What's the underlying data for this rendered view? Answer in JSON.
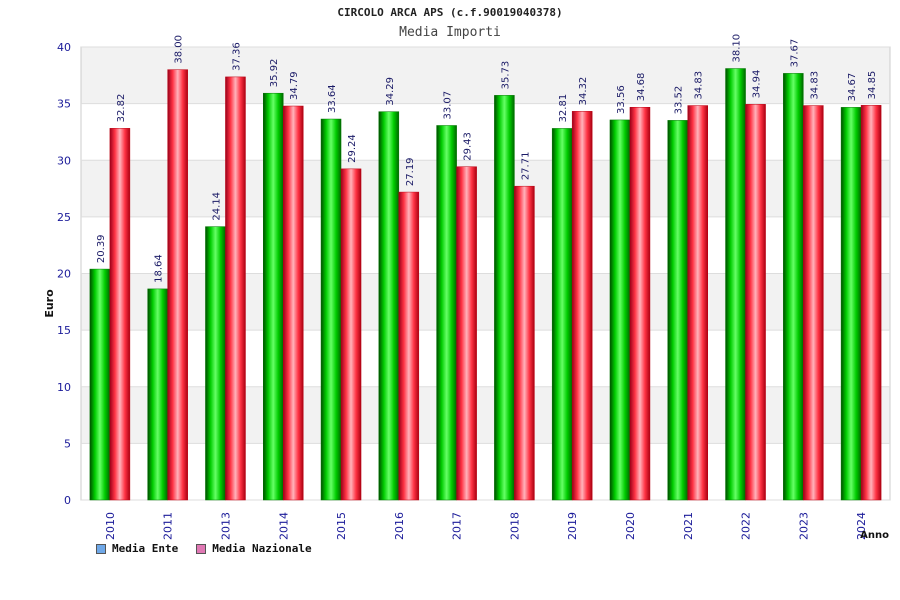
{
  "chart_data": {
    "type": "bar",
    "title": "CIRCOLO ARCA APS (c.f.90019040378)",
    "subtitle": "Media Importi",
    "ylabel": "Euro",
    "xlabel": "Anno",
    "ylim": [
      0,
      40
    ],
    "yticks": [
      0,
      5,
      10,
      15,
      20,
      25,
      30,
      35,
      40
    ],
    "grid": true,
    "legend_position": "bottom-left",
    "categories": [
      "2010",
      "2011",
      "2013",
      "2014",
      "2015",
      "2016",
      "2017",
      "2018",
      "2019",
      "2020",
      "2021",
      "2022",
      "2023",
      "2024"
    ],
    "series": [
      {
        "name": "Media Ente",
        "color": "#00aa00",
        "legend_color": "#6fa8e8",
        "values": [
          20.39,
          18.64,
          24.14,
          35.92,
          33.64,
          34.29,
          33.07,
          35.73,
          32.81,
          33.56,
          33.52,
          38.1,
          37.67,
          34.67
        ],
        "labels": [
          "20.39",
          "18.64",
          "24.14",
          "35.92",
          "33.64",
          "34.29",
          "33.07",
          "35.73",
          "32.81",
          "33.56",
          "33.52",
          "38.10",
          "37.67",
          "34.67"
        ]
      },
      {
        "name": "Media Nazionale",
        "color": "#ee1122",
        "legend_color": "#e078b4",
        "values": [
          32.82,
          38.0,
          37.36,
          34.79,
          29.24,
          27.19,
          29.43,
          27.71,
          34.32,
          34.68,
          34.83,
          34.94,
          34.83,
          34.85
        ],
        "labels": [
          "32.82",
          "38.00",
          "37.36",
          "34.79",
          "29.24",
          "27.19",
          "29.43",
          "27.71",
          "34.32",
          "34.68",
          "34.83",
          "34.94",
          "34.83",
          "34.85"
        ]
      }
    ]
  }
}
